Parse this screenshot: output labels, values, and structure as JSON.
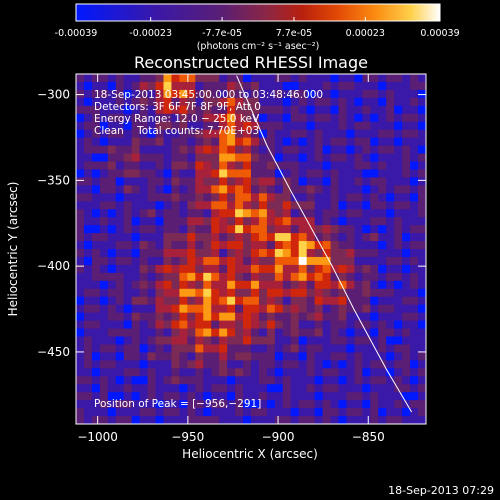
{
  "colorbar": {
    "tick_labels": [
      "-0.00039",
      "-0.00023",
      "-7.7e-05",
      "7.7e-05",
      "0.00023",
      "0.00039"
    ],
    "tick_values": [
      -0.00039,
      -0.00023,
      -7.7e-05,
      7.7e-05,
      0.00023,
      0.00039
    ],
    "range": [
      -0.00039,
      0.00039
    ],
    "units_label": "(photons cm⁻² s⁻¹ asec⁻²)",
    "colors": [
      "#0018ff",
      "#3a18a8",
      "#5a1e74",
      "#7a2a55",
      "#a8213b",
      "#d0270c",
      "#ee5a05",
      "#fc9a14",
      "#ffd24a",
      "#ffffff"
    ]
  },
  "chart_data": {
    "type": "heatmap",
    "title": "Reconstructed RHESSI Image",
    "xlabel": "Heliocentric X (arcsec)",
    "ylabel": "Heliocentric Y (arcsec)",
    "xlim": [
      -1012,
      -818
    ],
    "ylim": [
      -492,
      -288
    ],
    "x_ticks": [
      -1000,
      -950,
      -900,
      -850
    ],
    "x_tick_labels": [
      "−1000",
      "−950",
      "−900",
      "−850"
    ],
    "y_ticks": [
      -300,
      -350,
      -400,
      -450
    ],
    "y_tick_labels": [
      "−300",
      "−350",
      "−400",
      "−450"
    ],
    "peak": [
      -956,
      -291
    ],
    "limb_curve": [
      [
        -923,
        -289
      ],
      [
        -906,
        -330
      ],
      [
        -893,
        -356
      ],
      [
        -870,
        -400
      ],
      [
        -858,
        -425
      ],
      [
        -840,
        -460
      ],
      [
        -826,
        -485
      ]
    ],
    "annotations": [
      "18-Sep-2013 03:45:00.000 to 03:48:46.000",
      "Detectors: 3F 6F 7F 8F 9F, Att 0",
      "Energy Range: 12.0 − 25.0 keV",
      "Clean    Total counts: 7.70E+03"
    ],
    "peak_label": "Position of Peak = [−956,−291]"
  },
  "footer": {
    "timestamp": "18-Sep-2013 07:29"
  }
}
